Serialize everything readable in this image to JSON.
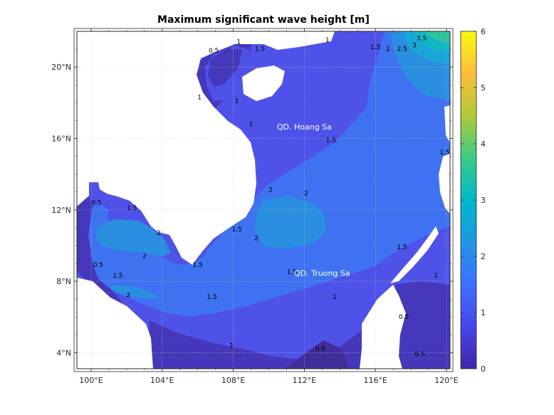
{
  "title": "Maximum significant wave height [m]",
  "map": {
    "lon_range": [
      99.2,
      120.2
    ],
    "lat_range": [
      3.1,
      22.0
    ],
    "lon_ticks": [
      100,
      104,
      108,
      112,
      116,
      120
    ],
    "lon_tick_labels": [
      "100°E",
      "104°E",
      "108°E",
      "112°E",
      "116°E",
      "120°E"
    ],
    "lat_ticks": [
      4,
      8,
      12,
      16,
      20
    ],
    "lat_tick_labels": [
      "4°N",
      "8°N",
      "12°N",
      "16°N",
      "20°N"
    ],
    "place_labels": [
      {
        "text": "QD. Hoang Sa",
        "lon": 112.0,
        "lat": 16.5
      },
      {
        "text": "QD. Truong Sa",
        "lon": 113.0,
        "lat": 8.3
      }
    ],
    "contour_labels": [
      {
        "text": "1",
        "lon": 113.3,
        "lat": 21.4
      },
      {
        "text": "1",
        "lon": 108.3,
        "lat": 21.3
      },
      {
        "text": "1.5",
        "lon": 116.0,
        "lat": 21.0
      },
      {
        "text": "1.5",
        "lon": 109.5,
        "lat": 20.9
      },
      {
        "text": "0.5",
        "lon": 106.9,
        "lat": 20.8
      },
      {
        "text": "2",
        "lon": 116.7,
        "lat": 20.9
      },
      {
        "text": "3",
        "lon": 118.2,
        "lat": 21.1
      },
      {
        "text": "2.5",
        "lon": 117.5,
        "lat": 20.9
      },
      {
        "text": "3.5",
        "lon": 118.6,
        "lat": 21.5
      },
      {
        "text": "1",
        "lon": 108.2,
        "lat": 18.0
      },
      {
        "text": "1",
        "lon": 109.0,
        "lat": 16.7
      },
      {
        "text": "1",
        "lon": 106.1,
        "lat": 18.2
      },
      {
        "text": "1.5",
        "lon": 113.5,
        "lat": 15.8
      },
      {
        "text": "1.5",
        "lon": 119.9,
        "lat": 15.1
      },
      {
        "text": "2",
        "lon": 110.1,
        "lat": 13.0
      },
      {
        "text": "2",
        "lon": 112.1,
        "lat": 12.8
      },
      {
        "text": "1.5",
        "lon": 102.3,
        "lat": 12.0
      },
      {
        "text": "0.5",
        "lon": 100.3,
        "lat": 12.3
      },
      {
        "text": "2",
        "lon": 103.8,
        "lat": 10.6
      },
      {
        "text": "2",
        "lon": 103.0,
        "lat": 9.3
      },
      {
        "text": "1.5",
        "lon": 108.2,
        "lat": 10.8
      },
      {
        "text": "2",
        "lon": 109.3,
        "lat": 10.3
      },
      {
        "text": "1.5",
        "lon": 101.5,
        "lat": 8.2
      },
      {
        "text": "0.5",
        "lon": 100.4,
        "lat": 8.8
      },
      {
        "text": "1.5",
        "lon": 106.0,
        "lat": 8.8
      },
      {
        "text": "2",
        "lon": 102.1,
        "lat": 7.1
      },
      {
        "text": "1.5",
        "lon": 111.3,
        "lat": 8.4
      },
      {
        "text": "1.5",
        "lon": 117.5,
        "lat": 9.8
      },
      {
        "text": "1",
        "lon": 119.4,
        "lat": 8.2
      },
      {
        "text": "1.5",
        "lon": 106.8,
        "lat": 7.0
      },
      {
        "text": "1",
        "lon": 113.7,
        "lat": 7.0
      },
      {
        "text": "0.5",
        "lon": 117.6,
        "lat": 5.9
      },
      {
        "text": "1",
        "lon": 107.9,
        "lat": 4.3
      },
      {
        "text": "0.5",
        "lon": 112.9,
        "lat": 4.1
      },
      {
        "text": "0.5",
        "lon": 118.5,
        "lat": 3.8
      }
    ]
  },
  "colorbar": {
    "min": 0,
    "max": 6,
    "ticks": [
      "0",
      "1",
      "2",
      "3",
      "4",
      "5",
      "6"
    ],
    "colormap": [
      "#3e26a8",
      "#4746eb",
      "#3e70ff",
      "#1f97e2",
      "#02b8ca",
      "#3bcb85",
      "#b0c93a",
      "#fdbd3c",
      "#f8fa0d"
    ]
  },
  "colors": {
    "level_0": "#3f2e9a",
    "level_0_5": "#4538ba",
    "level_1": "#4f52e8",
    "level_1_5": "#3f72f0",
    "level_2": "#2a8fe0",
    "level_2_5": "#1aa6d6",
    "level_3": "#12b7c6",
    "level_3_5": "#2ec39c",
    "land": "#ffffff"
  }
}
